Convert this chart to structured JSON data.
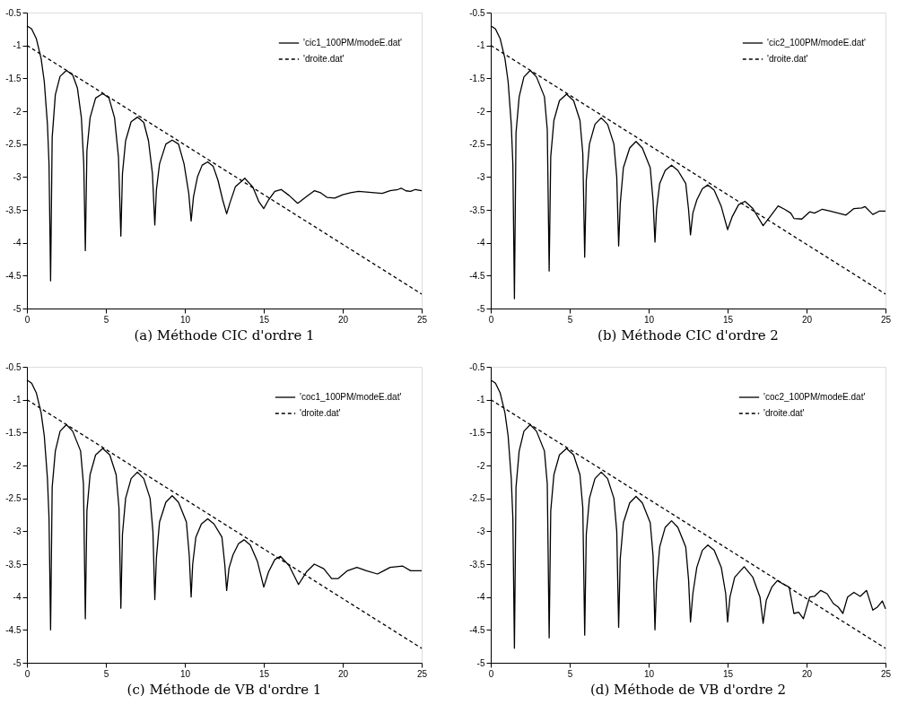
{
  "chart_data": [
    {
      "type": "line",
      "title": "(a) Méthode CIC d'ordre 1",
      "xlim": [
        0,
        25
      ],
      "ylim": [
        -5,
        -0.5
      ],
      "xticks": [
        0,
        5,
        10,
        15,
        20,
        25
      ],
      "yticks": [
        -5,
        -4.5,
        -4,
        -3.5,
        -3,
        -2.5,
        -2,
        -1.5,
        -1,
        -0.5
      ],
      "grid": false,
      "legend": "top right",
      "series": [
        {
          "name": "'cic1_100PM/modeE.dat'",
          "color": "#000000",
          "line_style": "solid",
          "x": [
            0,
            0.3,
            0.6,
            0.9,
            1.1,
            1.3,
            1.4,
            1.5,
            1.6,
            1.8,
            2.1,
            2.5,
            2.9,
            3.2,
            3.45,
            3.6,
            3.7,
            3.8,
            4.0,
            4.35,
            4.8,
            5.2,
            5.55,
            5.8,
            5.95,
            6.05,
            6.25,
            6.6,
            7.0,
            7.4,
            7.7,
            7.95,
            8.1,
            8.2,
            8.4,
            8.8,
            9.2,
            9.6,
            9.95,
            10.25,
            10.4,
            10.55,
            10.8,
            11.1,
            11.45,
            11.8,
            12.1,
            12.4,
            12.65,
            12.85,
            13.2,
            13.8,
            14.3,
            14.7,
            15.0,
            15.3,
            15.7,
            16.1,
            16.6,
            17.15,
            17.7,
            18.2,
            18.6,
            19.0,
            19.5,
            20.0,
            20.5,
            21.0,
            21.5,
            22.0,
            22.5,
            23.0,
            23.5,
            23.7,
            24.0,
            24.3,
            24.6,
            25.0
          ],
          "values": [
            -0.7,
            -0.75,
            -0.9,
            -1.2,
            -1.55,
            -2.2,
            -2.8,
            -4.58,
            -2.4,
            -1.75,
            -1.47,
            -1.38,
            -1.45,
            -1.65,
            -2.1,
            -2.8,
            -4.12,
            -2.6,
            -2.1,
            -1.8,
            -1.73,
            -1.8,
            -2.1,
            -2.7,
            -3.9,
            -2.95,
            -2.45,
            -2.16,
            -2.09,
            -2.17,
            -2.45,
            -2.95,
            -3.73,
            -3.2,
            -2.8,
            -2.5,
            -2.44,
            -2.5,
            -2.8,
            -3.25,
            -3.67,
            -3.3,
            -3.0,
            -2.82,
            -2.77,
            -2.84,
            -3.05,
            -3.35,
            -3.56,
            -3.4,
            -3.15,
            -3.02,
            -3.15,
            -3.38,
            -3.48,
            -3.35,
            -3.22,
            -3.19,
            -3.28,
            -3.4,
            -3.3,
            -3.21,
            -3.24,
            -3.31,
            -3.32,
            -3.27,
            -3.24,
            -3.22,
            -3.23,
            -3.24,
            -3.25,
            -3.21,
            -3.19,
            -3.17,
            -3.21,
            -3.22,
            -3.19,
            -3.21
          ]
        },
        {
          "name": "'droite.dat'",
          "color": "#000000",
          "line_style": "dashed",
          "x": [
            0,
            25
          ],
          "values": [
            -1,
            -4.78
          ]
        }
      ]
    },
    {
      "type": "line",
      "title": "(b) Méthode CIC d'ordre 2",
      "xlim": [
        0,
        25
      ],
      "ylim": [
        -5,
        -0.5
      ],
      "xticks": [
        0,
        5,
        10,
        15,
        20,
        25
      ],
      "yticks": [
        -5,
        -4.5,
        -4,
        -3.5,
        -3,
        -2.5,
        -2,
        -1.5,
        -1,
        -0.5
      ],
      "grid": false,
      "legend": "top right",
      "series": [
        {
          "name": "'cic2_100PM/modeE.dat'",
          "color": "#000000",
          "line_style": "solid",
          "x": [
            0,
            0.3,
            0.6,
            0.9,
            1.1,
            1.3,
            1.4,
            1.5,
            1.6,
            1.8,
            2.1,
            2.5,
            2.9,
            3.4,
            3.58,
            3.7,
            3.8,
            4.0,
            4.35,
            4.8,
            5.25,
            5.65,
            5.83,
            5.95,
            6.05,
            6.25,
            6.6,
            7.0,
            7.4,
            7.8,
            7.98,
            8.1,
            8.2,
            8.4,
            8.8,
            9.2,
            9.6,
            10.1,
            10.28,
            10.4,
            10.5,
            10.7,
            11.05,
            11.45,
            11.85,
            12.35,
            12.53,
            12.65,
            12.8,
            13.05,
            13.4,
            13.75,
            14.15,
            14.6,
            15.0,
            15.3,
            15.7,
            16.1,
            16.6,
            17.25,
            17.7,
            18.2,
            18.6,
            19.0,
            19.2,
            19.7,
            20.2,
            20.5,
            21.0,
            21.5,
            22.0,
            22.5,
            23.0,
            23.5,
            23.7,
            24.2,
            24.6,
            25.0
          ],
          "values": [
            -0.7,
            -0.75,
            -0.9,
            -1.2,
            -1.55,
            -2.2,
            -2.8,
            -4.85,
            -2.33,
            -1.78,
            -1.48,
            -1.38,
            -1.48,
            -1.78,
            -2.28,
            -4.43,
            -2.69,
            -2.14,
            -1.84,
            -1.74,
            -1.84,
            -2.14,
            -2.64,
            -4.22,
            -3.05,
            -2.5,
            -2.2,
            -2.1,
            -2.2,
            -2.5,
            -3.0,
            -4.05,
            -3.41,
            -2.86,
            -2.56,
            -2.46,
            -2.56,
            -2.86,
            -3.36,
            -3.99,
            -3.5,
            -3.1,
            -2.9,
            -2.82,
            -2.9,
            -3.1,
            -3.5,
            -3.88,
            -3.55,
            -3.35,
            -3.18,
            -3.12,
            -3.2,
            -3.45,
            -3.8,
            -3.6,
            -3.42,
            -3.37,
            -3.48,
            -3.74,
            -3.6,
            -3.44,
            -3.49,
            -3.55,
            -3.63,
            -3.64,
            -3.53,
            -3.55,
            -3.49,
            -3.52,
            -3.55,
            -3.58,
            -3.48,
            -3.47,
            -3.45,
            -3.57,
            -3.52,
            -3.52
          ]
        },
        {
          "name": "'droite.dat'",
          "color": "#000000",
          "line_style": "dashed",
          "x": [
            0,
            25
          ],
          "values": [
            -1,
            -4.78
          ]
        }
      ]
    },
    {
      "type": "line",
      "title": "(c) Méthode de VB d'ordre 1",
      "xlim": [
        0,
        25
      ],
      "ylim": [
        -5,
        -0.5
      ],
      "xticks": [
        0,
        5,
        10,
        15,
        20,
        25
      ],
      "yticks": [
        -5,
        -4.5,
        -4,
        -3.5,
        -3,
        -2.5,
        -2,
        -1.5,
        -1,
        -0.5
      ],
      "grid": false,
      "legend": "top right",
      "series": [
        {
          "name": "'coc1_100PM/modeE.dat'",
          "color": "#000000",
          "line_style": "solid",
          "x": [
            0,
            0.3,
            0.6,
            0.9,
            1.1,
            1.3,
            1.4,
            1.5,
            1.6,
            1.8,
            2.1,
            2.5,
            2.9,
            3.4,
            3.58,
            3.7,
            3.8,
            4.0,
            4.35,
            4.8,
            5.25,
            5.65,
            5.83,
            5.95,
            6.05,
            6.25,
            6.6,
            7.0,
            7.4,
            7.8,
            7.98,
            8.1,
            8.2,
            8.4,
            8.8,
            9.2,
            9.6,
            10.1,
            10.28,
            10.4,
            10.5,
            10.7,
            11.05,
            11.45,
            11.85,
            12.35,
            12.53,
            12.65,
            12.8,
            13.05,
            13.4,
            13.75,
            14.15,
            14.6,
            15.0,
            15.3,
            15.7,
            16.05,
            16.6,
            17.2,
            17.7,
            18.2,
            18.8,
            19.3,
            19.7,
            20.3,
            20.9,
            21.5,
            22.2,
            22.6,
            23.0,
            23.8,
            24.3,
            25.0
          ],
          "values": [
            -0.7,
            -0.75,
            -0.9,
            -1.2,
            -1.55,
            -2.2,
            -2.8,
            -4.5,
            -2.33,
            -1.78,
            -1.48,
            -1.38,
            -1.48,
            -1.78,
            -2.28,
            -4.33,
            -2.69,
            -2.14,
            -1.84,
            -1.74,
            -1.84,
            -2.14,
            -2.64,
            -4.17,
            -3.05,
            -2.5,
            -2.2,
            -2.1,
            -2.2,
            -2.5,
            -3.0,
            -4.04,
            -3.41,
            -2.86,
            -2.56,
            -2.46,
            -2.56,
            -2.86,
            -3.36,
            -4.0,
            -3.5,
            -3.09,
            -2.89,
            -2.81,
            -2.89,
            -3.09,
            -3.5,
            -3.9,
            -3.56,
            -3.36,
            -3.19,
            -3.13,
            -3.21,
            -3.46,
            -3.85,
            -3.62,
            -3.43,
            -3.38,
            -3.52,
            -3.81,
            -3.62,
            -3.5,
            -3.57,
            -3.72,
            -3.72,
            -3.6,
            -3.55,
            -3.6,
            -3.65,
            -3.6,
            -3.55,
            -3.53,
            -3.6,
            -3.6
          ]
        },
        {
          "name": "'droite.dat'",
          "color": "#000000",
          "line_style": "dashed",
          "x": [
            0,
            25
          ],
          "values": [
            -1,
            -4.78
          ]
        }
      ]
    },
    {
      "type": "line",
      "title": "(d) Méthode de VB d'ordre 2",
      "xlim": [
        0,
        25
      ],
      "ylim": [
        -5,
        -0.5
      ],
      "xticks": [
        0,
        5,
        10,
        15,
        20,
        25
      ],
      "yticks": [
        -5,
        -4.5,
        -4,
        -3.5,
        -3,
        -2.5,
        -2,
        -1.5,
        -1,
        -0.5
      ],
      "grid": false,
      "legend": "top right",
      "series": [
        {
          "name": "'coc2_100PM/modeE.dat'",
          "color": "#000000",
          "line_style": "solid",
          "x": [
            0,
            0.3,
            0.6,
            0.9,
            1.1,
            1.3,
            1.4,
            1.5,
            1.6,
            1.8,
            2.1,
            2.5,
            2.9,
            3.4,
            3.58,
            3.7,
            3.8,
            4.0,
            4.35,
            4.8,
            5.25,
            5.65,
            5.83,
            5.95,
            6.05,
            6.25,
            6.6,
            7.0,
            7.4,
            7.8,
            7.98,
            8.1,
            8.2,
            8.4,
            8.8,
            9.2,
            9.6,
            10.1,
            10.28,
            10.4,
            10.5,
            10.7,
            11.05,
            11.45,
            11.85,
            12.35,
            12.53,
            12.65,
            12.8,
            13.05,
            13.4,
            13.75,
            14.15,
            14.6,
            14.88,
            15.0,
            15.15,
            15.45,
            16.05,
            16.6,
            17.05,
            17.25,
            17.45,
            17.8,
            18.15,
            18.5,
            18.9,
            19.2,
            19.5,
            19.8,
            20.2,
            20.5,
            20.9,
            21.3,
            21.7,
            22.0,
            22.3,
            22.6,
            23.0,
            23.4,
            23.8,
            24.2,
            24.5,
            24.8,
            25.0
          ],
          "values": [
            -0.7,
            -0.75,
            -0.9,
            -1.2,
            -1.55,
            -2.2,
            -2.8,
            -4.78,
            -2.33,
            -1.78,
            -1.48,
            -1.38,
            -1.48,
            -1.78,
            -2.28,
            -4.62,
            -2.69,
            -2.14,
            -1.84,
            -1.74,
            -1.84,
            -2.14,
            -2.64,
            -4.58,
            -3.05,
            -2.5,
            -2.2,
            -2.1,
            -2.2,
            -2.5,
            -3.0,
            -4.46,
            -3.42,
            -2.87,
            -2.57,
            -2.47,
            -2.57,
            -2.87,
            -3.37,
            -4.5,
            -3.79,
            -3.24,
            -2.94,
            -2.84,
            -2.94,
            -3.24,
            -3.74,
            -4.38,
            -3.95,
            -3.55,
            -3.29,
            -3.21,
            -3.29,
            -3.55,
            -3.95,
            -4.38,
            -4.0,
            -3.7,
            -3.54,
            -3.7,
            -4.0,
            -4.4,
            -4.05,
            -3.85,
            -3.75,
            -3.8,
            -3.85,
            -4.25,
            -4.23,
            -4.33,
            -4.0,
            -3.99,
            -3.9,
            -3.95,
            -4.1,
            -4.15,
            -4.25,
            -4.0,
            -3.93,
            -3.99,
            -3.9,
            -4.2,
            -4.15,
            -4.06,
            -4.18
          ]
        },
        {
          "name": "'droite.dat'",
          "color": "#000000",
          "line_style": "dashed",
          "x": [
            0,
            25
          ],
          "values": [
            -1,
            -4.78
          ]
        }
      ]
    }
  ]
}
